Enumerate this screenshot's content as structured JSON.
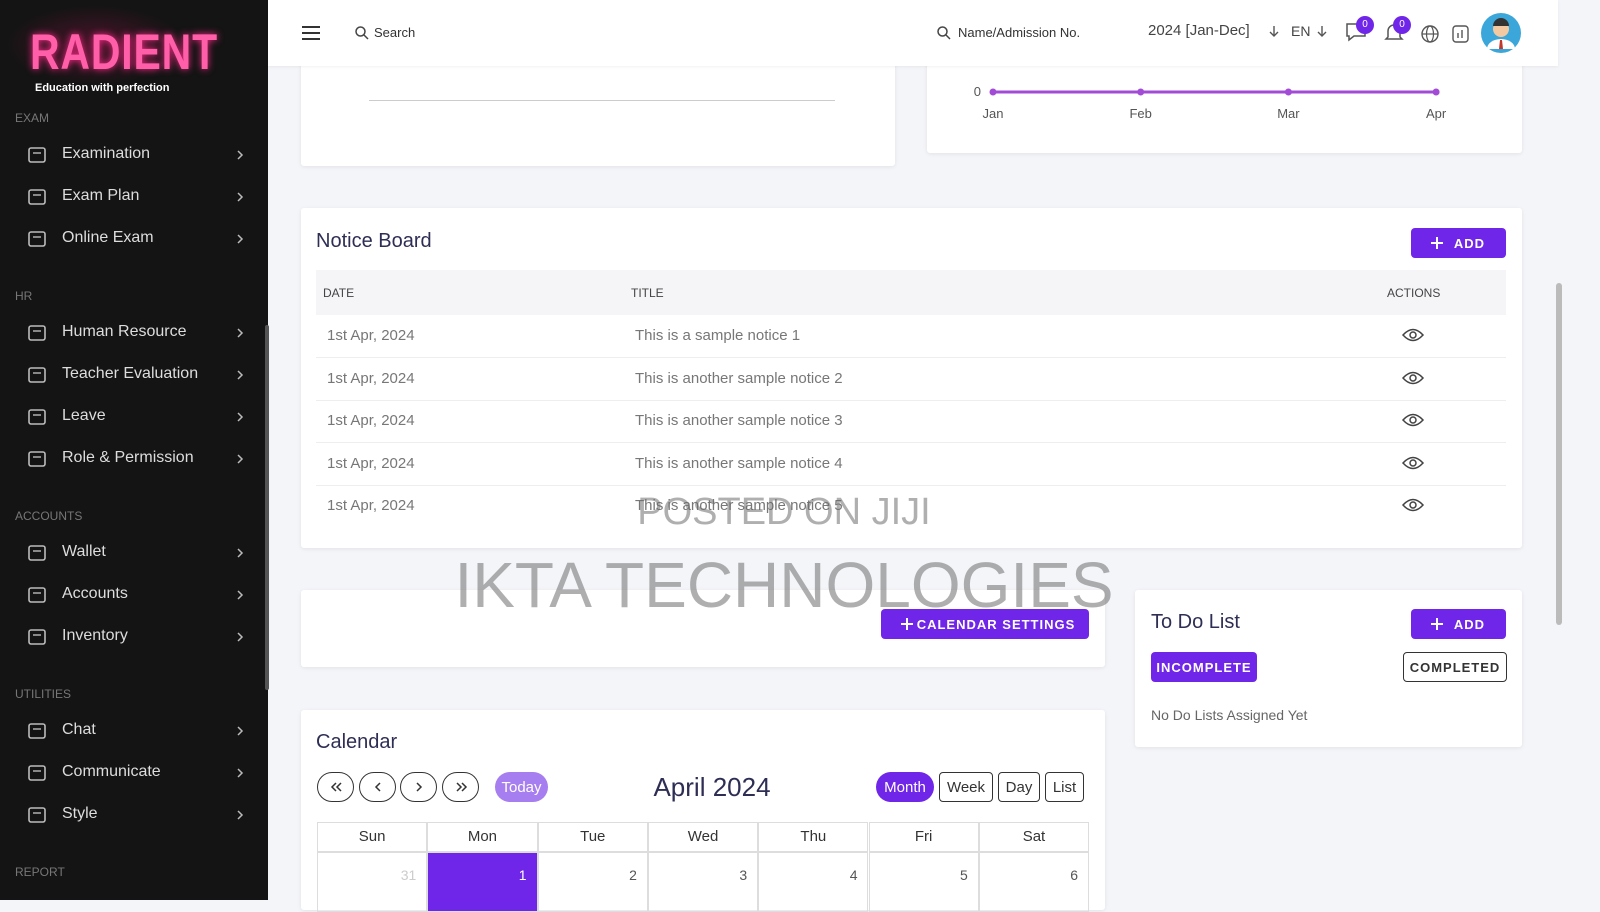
{
  "sidebar": {
    "logo": "RADIENT",
    "tagline": "Education with perfection",
    "sections": [
      {
        "title": "EXAM",
        "items": [
          "Examination",
          "Exam Plan",
          "Online Exam"
        ]
      },
      {
        "title": "HR",
        "items": [
          "Human Resource",
          "Teacher Evaluation",
          "Leave",
          "Role & Permission"
        ]
      },
      {
        "title": "ACCOUNTS",
        "items": [
          "Wallet",
          "Accounts",
          "Inventory"
        ]
      },
      {
        "title": "UTILITIES",
        "items": [
          "Chat",
          "Communicate",
          "Style"
        ]
      },
      {
        "title": "REPORT",
        "items": []
      }
    ]
  },
  "topbar": {
    "search": "Search",
    "student_search": "Name/Admission No.",
    "session": "2024 [Jan-Dec]",
    "language": "EN",
    "message_count": 0,
    "notification_count": 0
  },
  "income_chart": {
    "type": "line",
    "categories": [
      "Jan",
      "Feb",
      "Mar",
      "Apr"
    ],
    "values": [
      0,
      0,
      0,
      0
    ],
    "yticks": [
      0
    ],
    "color": "#a24bd6"
  },
  "notice_board": {
    "title": "Notice Board",
    "add": "ADD",
    "columns": [
      "DATE",
      "TITLE",
      "ACTIONS"
    ],
    "rows": [
      [
        "1st Apr, 2024",
        "This is a sample notice 1"
      ],
      [
        "1st Apr, 2024",
        "This is another sample notice 2"
      ],
      [
        "1st Apr, 2024",
        "This is another sample notice 3"
      ],
      [
        "1st Apr, 2024",
        "This is another sample notice 4"
      ],
      [
        "1st Apr, 2024",
        "This is another sample notice 5"
      ]
    ]
  },
  "watermark": [
    "POSTED ON JIJI",
    "IKTA TECHNOLOGIES"
  ],
  "calendar_settings": "CALENDAR SETTINGS",
  "todo": {
    "title": "To Do List",
    "add": "ADD",
    "tabs": [
      "INCOMPLETE",
      "COMPLETED"
    ],
    "empty": "No Do Lists Assigned Yet"
  },
  "calendar": {
    "title": "Calendar",
    "today": "Today",
    "month_label": "April 2024",
    "views": [
      "Month",
      "Week",
      "Day",
      "List"
    ],
    "weekdays": [
      "Sun",
      "Mon",
      "Tue",
      "Wed",
      "Thu",
      "Fri",
      "Sat"
    ],
    "days": [
      31,
      1,
      2,
      3,
      4,
      5,
      6
    ]
  }
}
